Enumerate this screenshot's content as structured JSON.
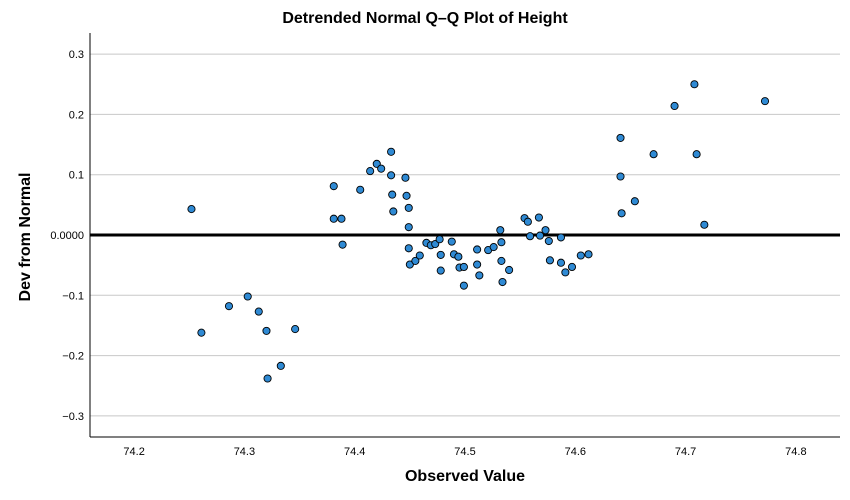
{
  "chart_data": {
    "type": "scatter",
    "title": "Detrended Normal Q–Q Plot of Height",
    "xlabel": "Observed Value",
    "ylabel": "Dev from Normal",
    "xlim": [
      74.16,
      74.84
    ],
    "ylim": [
      -0.335,
      0.335
    ],
    "xticks": [
      74.2,
      74.3,
      74.4,
      74.5,
      74.6,
      74.7,
      74.8
    ],
    "xtick_labels": [
      "74.2",
      "74.3",
      "74.4",
      "74.5",
      "74.6",
      "74.7",
      "74.8"
    ],
    "yticks": [
      0.3,
      0.2,
      0.1,
      0.0,
      -0.1,
      -0.2,
      -0.3
    ],
    "ytick_labels": [
      "0.3",
      "0.2",
      "0.1",
      "0.0000",
      "−0.1",
      "−0.2",
      "−0.3"
    ],
    "grid": "horizontal",
    "reference_line_y": 0.0,
    "marker_color": "#2f8ad4",
    "marker_edge_color": "#000000",
    "points": [
      {
        "x": 74.252,
        "y": 0.043
      },
      {
        "x": 74.261,
        "y": -0.162
      },
      {
        "x": 74.286,
        "y": -0.118
      },
      {
        "x": 74.303,
        "y": -0.102
      },
      {
        "x": 74.313,
        "y": -0.127
      },
      {
        "x": 74.32,
        "y": -0.159
      },
      {
        "x": 74.321,
        "y": -0.238
      },
      {
        "x": 74.333,
        "y": -0.217
      },
      {
        "x": 74.346,
        "y": -0.156
      },
      {
        "x": 74.381,
        "y": 0.081
      },
      {
        "x": 74.381,
        "y": 0.027
      },
      {
        "x": 74.388,
        "y": 0.027
      },
      {
        "x": 74.389,
        "y": -0.016
      },
      {
        "x": 74.405,
        "y": 0.075
      },
      {
        "x": 74.414,
        "y": 0.106
      },
      {
        "x": 74.42,
        "y": 0.118
      },
      {
        "x": 74.424,
        "y": 0.11
      },
      {
        "x": 74.433,
        "y": 0.138
      },
      {
        "x": 74.433,
        "y": 0.099
      },
      {
        "x": 74.434,
        "y": 0.067
      },
      {
        "x": 74.435,
        "y": 0.039
      },
      {
        "x": 74.446,
        "y": 0.095
      },
      {
        "x": 74.447,
        "y": 0.065
      },
      {
        "x": 74.449,
        "y": 0.045
      },
      {
        "x": 74.449,
        "y": 0.013
      },
      {
        "x": 74.449,
        "y": -0.022
      },
      {
        "x": 74.45,
        "y": -0.049
      },
      {
        "x": 74.455,
        "y": -0.043
      },
      {
        "x": 74.459,
        "y": -0.034
      },
      {
        "x": 74.465,
        "y": -0.013
      },
      {
        "x": 74.469,
        "y": -0.017
      },
      {
        "x": 74.473,
        "y": -0.015
      },
      {
        "x": 74.477,
        "y": -0.007
      },
      {
        "x": 74.478,
        "y": -0.033
      },
      {
        "x": 74.478,
        "y": -0.059
      },
      {
        "x": 74.488,
        "y": -0.011
      },
      {
        "x": 74.49,
        "y": -0.032
      },
      {
        "x": 74.494,
        "y": -0.036
      },
      {
        "x": 74.495,
        "y": -0.054
      },
      {
        "x": 74.499,
        "y": -0.053
      },
      {
        "x": 74.499,
        "y": -0.084
      },
      {
        "x": 74.511,
        "y": -0.024
      },
      {
        "x": 74.511,
        "y": -0.049
      },
      {
        "x": 74.513,
        "y": -0.067
      },
      {
        "x": 74.521,
        "y": -0.025
      },
      {
        "x": 74.526,
        "y": -0.02
      },
      {
        "x": 74.532,
        "y": 0.008
      },
      {
        "x": 74.533,
        "y": -0.012
      },
      {
        "x": 74.533,
        "y": -0.043
      },
      {
        "x": 74.534,
        "y": -0.078
      },
      {
        "x": 74.54,
        "y": -0.058
      },
      {
        "x": 74.554,
        "y": 0.028
      },
      {
        "x": 74.557,
        "y": 0.022
      },
      {
        "x": 74.559,
        "y": -0.002
      },
      {
        "x": 74.567,
        "y": 0.029
      },
      {
        "x": 74.568,
        "y": -0.001
      },
      {
        "x": 74.573,
        "y": 0.008
      },
      {
        "x": 74.576,
        "y": -0.01
      },
      {
        "x": 74.577,
        "y": -0.042
      },
      {
        "x": 74.587,
        "y": -0.004
      },
      {
        "x": 74.587,
        "y": -0.046
      },
      {
        "x": 74.591,
        "y": -0.062
      },
      {
        "x": 74.597,
        "y": -0.053
      },
      {
        "x": 74.605,
        "y": -0.034
      },
      {
        "x": 74.612,
        "y": -0.032
      },
      {
        "x": 74.641,
        "y": 0.161
      },
      {
        "x": 74.641,
        "y": 0.097
      },
      {
        "x": 74.642,
        "y": 0.036
      },
      {
        "x": 74.654,
        "y": 0.056
      },
      {
        "x": 74.671,
        "y": 0.134
      },
      {
        "x": 74.69,
        "y": 0.214
      },
      {
        "x": 74.708,
        "y": 0.25
      },
      {
        "x": 74.71,
        "y": 0.134
      },
      {
        "x": 74.717,
        "y": 0.017
      },
      {
        "x": 74.772,
        "y": 0.222
      }
    ]
  }
}
